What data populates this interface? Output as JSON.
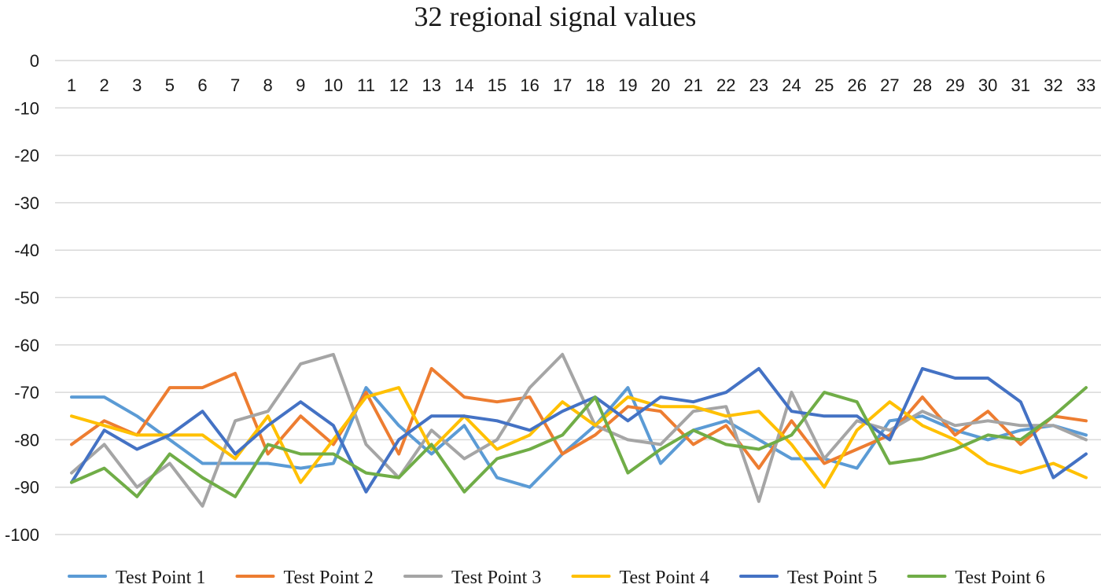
{
  "chart_data": {
    "type": "line",
    "title": "32 regional signal values",
    "xlabel": "",
    "ylabel": "",
    "ylim": [
      -100,
      0
    ],
    "yticks": [
      0,
      -10,
      -20,
      -30,
      -40,
      -50,
      -60,
      -70,
      -80,
      -90,
      -100
    ],
    "ytick_labels": [
      "0",
      "-10",
      "-20",
      "-30",
      "-40",
      "-50",
      "-60",
      "-70",
      "-80",
      "-90",
      "-100"
    ],
    "categories": [
      "1",
      "2",
      "3",
      "5",
      "6",
      "7",
      "8",
      "9",
      "10",
      "11",
      "12",
      "13",
      "14",
      "15",
      "16",
      "17",
      "18",
      "19",
      "20",
      "21",
      "22",
      "23",
      "24",
      "25",
      "26",
      "27",
      "28",
      "29",
      "30",
      "31",
      "32",
      "33"
    ],
    "x_axis_position": "top",
    "grid": true,
    "legend": "bottom",
    "series": [
      {
        "name": "Test Point 1",
        "color": "#5b9bd5",
        "values": [
          -71,
          -71,
          -75,
          -80,
          -85,
          -85,
          -85,
          -86,
          -85,
          -69,
          -77,
          -83,
          -77,
          -88,
          -90,
          -83,
          -77,
          -69,
          -85,
          -78,
          -76,
          -80,
          -84,
          -84,
          -86,
          -76,
          -75,
          -78,
          -80,
          -78,
          -77,
          -79
        ]
      },
      {
        "name": "Test Point 2",
        "color": "#ed7d31",
        "values": [
          -81,
          -76,
          -79,
          -69,
          -69,
          -66,
          -83,
          -75,
          -81,
          -70,
          -83,
          -65,
          -71,
          -72,
          -71,
          -83,
          -79,
          -73,
          -74,
          -81,
          -77,
          -86,
          -76,
          -85,
          -82,
          -79,
          -71,
          -79,
          -74,
          -81,
          -75,
          -76
        ]
      },
      {
        "name": "Test Point 3",
        "color": "#a5a5a5",
        "values": [
          -87,
          -81,
          -90,
          -85,
          -94,
          -76,
          -74,
          -64,
          -62,
          -81,
          -88,
          -78,
          -84,
          -80,
          -69,
          -62,
          -77,
          -80,
          -81,
          -74,
          -73,
          -93,
          -70,
          -84,
          -76,
          -78,
          -74,
          -77,
          -76,
          -77,
          -77,
          -80
        ]
      },
      {
        "name": "Test Point 4",
        "color": "#ffc000",
        "values": [
          -75,
          -77,
          -79,
          -79,
          -79,
          -84,
          -75,
          -89,
          -80,
          -71,
          -69,
          -82,
          -75,
          -82,
          -79,
          -72,
          -77,
          -71,
          -73,
          -73,
          -75,
          -74,
          -81,
          -90,
          -78,
          -72,
          -77,
          -80,
          -85,
          -87,
          -85,
          -88
        ]
      },
      {
        "name": "Test Point 5",
        "color": "#4472c4",
        "values": [
          -89,
          -78,
          -82,
          -79,
          -74,
          -83,
          -77,
          -72,
          -77,
          -91,
          -80,
          -75,
          -75,
          -76,
          -78,
          -74,
          -71,
          -76,
          -71,
          -72,
          -70,
          -65,
          -74,
          -75,
          -75,
          -80,
          -65,
          -67,
          -67,
          -72,
          -88,
          -83
        ]
      },
      {
        "name": "Test Point 6",
        "color": "#70ad47",
        "values": [
          -89,
          -86,
          -92,
          -83,
          -88,
          -92,
          -81,
          -83,
          -83,
          -87,
          -88,
          -81,
          -91,
          -84,
          -82,
          -79,
          -71,
          -87,
          -82,
          -78,
          -81,
          -82,
          -79,
          -70,
          -72,
          -85,
          -84,
          -82,
          -79,
          -80,
          -75,
          -69
        ]
      }
    ]
  }
}
